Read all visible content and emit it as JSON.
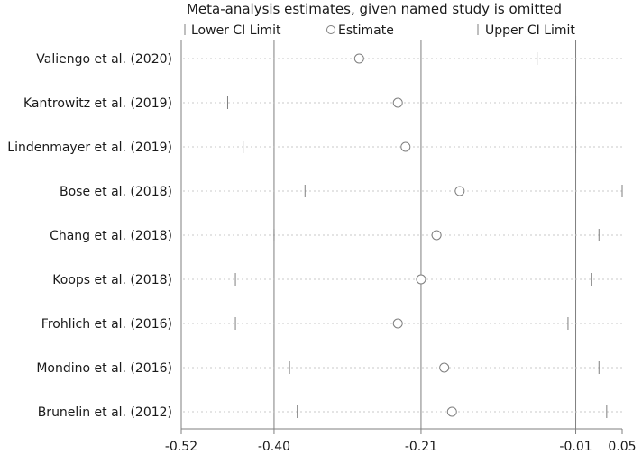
{
  "chart_data": {
    "type": "forest",
    "title": "Meta-analysis estimates, given named study is omitted",
    "legend": [
      {
        "label": "Lower CI Limit",
        "symbol": "tick"
      },
      {
        "label": "Estimate",
        "symbol": "circle"
      },
      {
        "label": "Upper CI Limit",
        "symbol": "tick"
      }
    ],
    "legend_position": "top",
    "studies": [
      "Valiengo et al. (2020)",
      "Kantrowitz et al. (2019)",
      "Lindenmayer et al. (2019)",
      "Bose et al. (2018)",
      "Chang et al. (2018)",
      "Koops et al. (2018)",
      "Frohlich et al. (2016)",
      "Mondino et al. (2016)",
      "Brunelin et al. (2012)"
    ],
    "lower": [
      -0.52,
      -0.46,
      -0.44,
      -0.36,
      -0.4,
      -0.45,
      -0.45,
      -0.38,
      -0.37
    ],
    "estimate": [
      -0.29,
      -0.24,
      -0.23,
      -0.16,
      -0.19,
      -0.21,
      -0.24,
      -0.18,
      -0.17
    ],
    "upper": [
      -0.06,
      -0.01,
      -0.01,
      0.05,
      0.02,
      0.01,
      -0.02,
      0.02,
      0.03
    ],
    "x_ticks": [
      "-0.52",
      "-0.40",
      "-0.21",
      "-0.01",
      "0.05"
    ],
    "x_tick_values": [
      -0.52,
      -0.4,
      -0.21,
      -0.01,
      0.05
    ],
    "reference_lines": [
      -0.4,
      -0.21,
      -0.01
    ],
    "xlim": [
      -0.52,
      0.05
    ],
    "xlabel": "",
    "ylabel": "",
    "colors": {
      "line": "#7f7f7f",
      "dotted": "#c8c8c8",
      "text": "#1a1a1a"
    }
  }
}
